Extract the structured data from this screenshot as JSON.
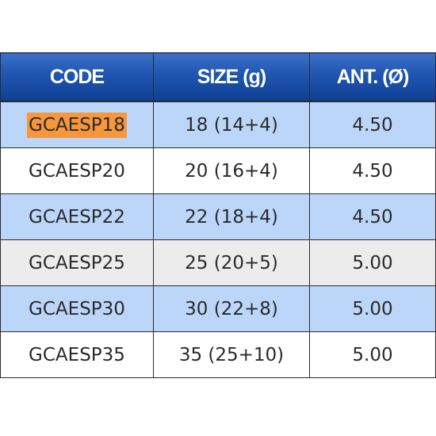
{
  "table": {
    "headers": [
      "CODE",
      "SIZE (g)",
      "ANT. (Ø)"
    ],
    "rows": [
      {
        "code": "GCAESP18",
        "size": "18 (14+4)",
        "ant": "4.50",
        "style": "blue",
        "highlight_code": true
      },
      {
        "code": "GCAESP20",
        "size": "20 (16+4)",
        "ant": "4.50",
        "style": "white"
      },
      {
        "code": "GCAESP22",
        "size": "22 (18+4)",
        "ant": "4.50",
        "style": "blue"
      },
      {
        "code": "GCAESP25",
        "size": "25 (20+5)",
        "ant": "5.00",
        "style": "grey"
      },
      {
        "code": "GCAESP30",
        "size": "30 (22+8)",
        "ant": "5.00",
        "style": "blue"
      },
      {
        "code": "GCAESP35",
        "size": "35 (25+10)",
        "ant": "5.00",
        "style": "white"
      }
    ],
    "colors": {
      "header": "#1f55b0",
      "row_blue": "#bcd6fa",
      "row_grey": "#ececec",
      "highlight": "#f7963a"
    }
  }
}
